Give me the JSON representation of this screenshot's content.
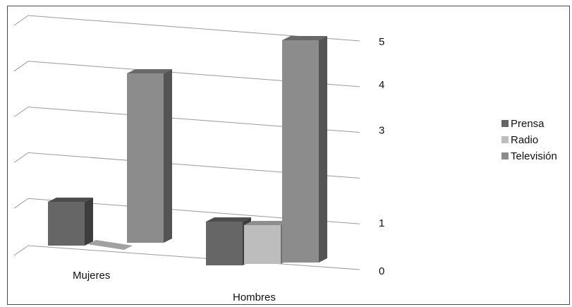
{
  "chart_data": {
    "type": "bar",
    "categories": [
      "Mujeres",
      "Hombres"
    ],
    "series": [
      {
        "name": "Prensa",
        "values": [
          1,
          1
        ],
        "color": "#666666"
      },
      {
        "name": "Radio",
        "values": [
          0,
          1
        ],
        "color": "#bdbdbd"
      },
      {
        "name": "Televisión",
        "values": [
          4,
          5
        ],
        "color": "#8c8c8c"
      }
    ],
    "y_tick_labels": [
      "0",
      "1",
      "3",
      "4",
      "5"
    ],
    "ylim": [
      0,
      5
    ],
    "grid": true,
    "legend_position": "right",
    "title": "",
    "xlabel": "",
    "ylabel": ""
  }
}
